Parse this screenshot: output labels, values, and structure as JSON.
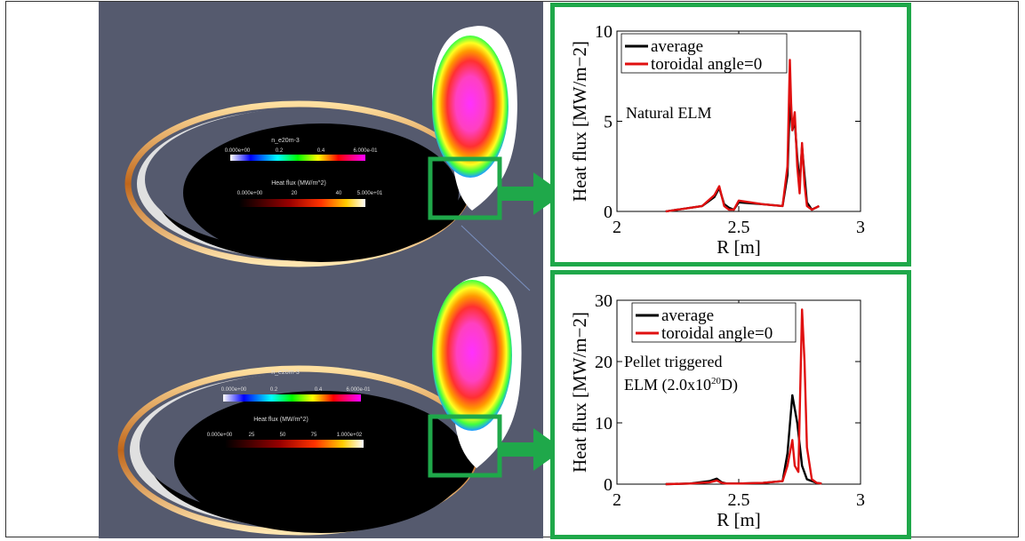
{
  "colors": {
    "frame_green": "#1fa84a",
    "background_gray": "#555a6e",
    "average_line": "#000000",
    "toroidal_line": "#e01010"
  },
  "simulations": [
    {
      "density_colorbar": {
        "title": "n_e20m-3",
        "ticks": [
          "0.000e+00",
          "0.2",
          "0.4",
          "6.000e-01"
        ]
      },
      "heatflux_colorbar": {
        "title": "Heat flux (MW/m^2)",
        "ticks": [
          "0.000e+00",
          "20",
          "40",
          "5.000e+01"
        ]
      }
    },
    {
      "density_colorbar": {
        "title": "n_e20m-3",
        "ticks": [
          "0.000e+00",
          "0.2",
          "0.4",
          "6.000e-01"
        ]
      },
      "heatflux_colorbar": {
        "title": "Heat flux (MW/m^2)",
        "ticks": [
          "0.000e+00",
          "25",
          "50",
          "75",
          "1.000e+02"
        ]
      }
    }
  ],
  "chart_data": [
    {
      "type": "line",
      "annotation": "Natural ELM",
      "xlabel": "R [m]",
      "ylabel": "Heat flux [MW/m−2]",
      "xlim": [
        2,
        3
      ],
      "ylim": [
        0,
        10
      ],
      "xticks": [
        "2",
        "2.5",
        "3"
      ],
      "yticks": [
        "0",
        "5",
        "10"
      ],
      "legend_position": "top-left",
      "series": [
        {
          "name": "average",
          "color": "#000000",
          "x": [
            2.2,
            2.35,
            2.4,
            2.42,
            2.44,
            2.46,
            2.48,
            2.5,
            2.6,
            2.68,
            2.7,
            2.71,
            2.72,
            2.73,
            2.74,
            2.75,
            2.76,
            2.77,
            2.78,
            2.8,
            2.83
          ],
          "y": [
            0,
            0.3,
            0.8,
            1.3,
            0.4,
            0.2,
            0.1,
            0.5,
            0.4,
            0.3,
            2.0,
            6.1,
            4.5,
            5.0,
            3.0,
            1.5,
            3.6,
            2.0,
            0.5,
            0.1,
            0.3
          ]
        },
        {
          "name": "toroidal angle=0",
          "color": "#e01010",
          "x": [
            2.2,
            2.35,
            2.4,
            2.42,
            2.44,
            2.46,
            2.48,
            2.5,
            2.6,
            2.68,
            2.7,
            2.71,
            2.715,
            2.72,
            2.73,
            2.74,
            2.75,
            2.76,
            2.77,
            2.78,
            2.8,
            2.83
          ],
          "y": [
            0,
            0.3,
            0.9,
            1.4,
            0.3,
            0.1,
            0.1,
            0.6,
            0.4,
            0.3,
            2.5,
            8.4,
            6.0,
            4.5,
            5.5,
            2.5,
            1.0,
            3.8,
            1.5,
            0.3,
            0.1,
            0.3
          ]
        }
      ]
    },
    {
      "type": "line",
      "annotation_lines": [
        "Pellet triggered",
        "ELM (2.0x10",
        "20",
        "D)"
      ],
      "xlabel": "R [m]",
      "ylabel": "Heat flux [MW/m−2]",
      "xlim": [
        2,
        3
      ],
      "ylim": [
        0,
        30
      ],
      "xticks": [
        "2",
        "2.5",
        "3"
      ],
      "yticks": [
        "0",
        "10",
        "20",
        "30"
      ],
      "legend_position": "top-left",
      "series": [
        {
          "name": "average",
          "color": "#000000",
          "x": [
            2.2,
            2.3,
            2.38,
            2.41,
            2.43,
            2.45,
            2.5,
            2.6,
            2.68,
            2.7,
            2.72,
            2.74,
            2.76,
            2.78,
            2.82,
            2.84
          ],
          "y": [
            0,
            0.1,
            0.5,
            0.9,
            0.3,
            0.1,
            0.1,
            0.2,
            0.5,
            5.0,
            14.5,
            10.0,
            3.0,
            0.8,
            0.2,
            0.1
          ]
        },
        {
          "name": "toroidal angle=0",
          "color": "#e01010",
          "x": [
            2.2,
            2.3,
            2.38,
            2.41,
            2.43,
            2.45,
            2.5,
            2.6,
            2.68,
            2.7,
            2.72,
            2.73,
            2.745,
            2.76,
            2.77,
            2.78,
            2.8,
            2.82,
            2.84
          ],
          "y": [
            0,
            0.1,
            0.3,
            0.6,
            0.2,
            0.1,
            0.1,
            0.2,
            0.5,
            3.0,
            7.2,
            3.0,
            2.0,
            28.5,
            20.0,
            6.0,
            0.8,
            0.2,
            0.1
          ]
        }
      ]
    }
  ]
}
